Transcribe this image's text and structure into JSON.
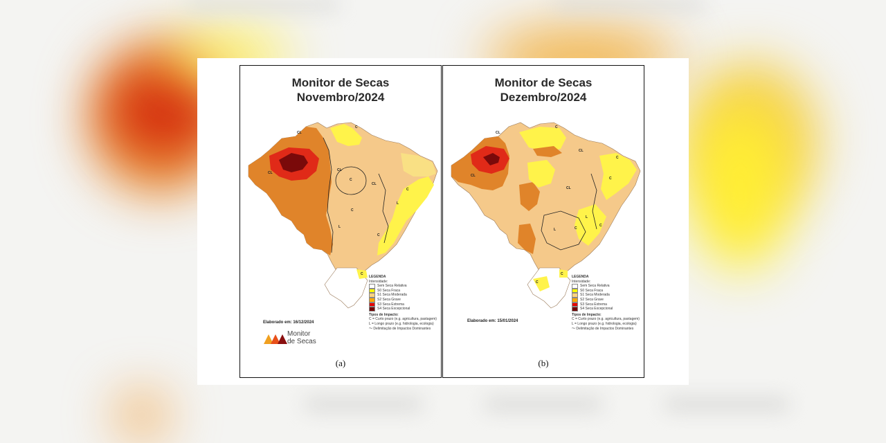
{
  "colors": {
    "none": "#ffffff",
    "s0": "#ffff00",
    "s1": "#fcd37f",
    "s2": "#ffaa00",
    "s2_map": "#e8892a",
    "s3": "#e60000",
    "s4": "#730000",
    "s1_map": "#f5c98a"
  },
  "panels": [
    {
      "title_line1": "Monitor de Secas",
      "title_line2": "Novembro/2024",
      "elaborado": "Elaborado em: 16/12/2024",
      "caption": "(a)",
      "show_logo": true,
      "logo_text_1": "Monitor",
      "logo_text_2": "de Secas"
    },
    {
      "title_line1": "Monitor de Secas",
      "title_line2": "Dezembro/2024",
      "elaborado": "Elaborado em: 15/01/2024",
      "caption": "(b)",
      "show_logo": false
    }
  ],
  "legend": {
    "title": "LEGENDA",
    "subtitle": "Intensidade:",
    "items": [
      {
        "label": "Sem Seca Relativa",
        "color": "#ffffff"
      },
      {
        "label": "S0 Seca Fraca",
        "color": "#ffff00"
      },
      {
        "label": "S1 Seca Moderada",
        "color": "#fcd37f"
      },
      {
        "label": "S2 Seca Grave",
        "color": "#ffaa00"
      },
      {
        "label": "S3 Seca Extrema",
        "color": "#e60000"
      },
      {
        "label": "S4 Seca Excepcional",
        "color": "#730000"
      }
    ],
    "impact_title": "Tipos de Impacto:",
    "impact_c": "C = Curto prazo (e.g. agricultura, pastagem)",
    "impact_l": "L = Longo prazo (e.g. hidrologia, ecologia)",
    "impact_line": "Delimitação de Impactos Dominantes"
  },
  "map_labels": [
    "CL",
    "C",
    "L"
  ]
}
